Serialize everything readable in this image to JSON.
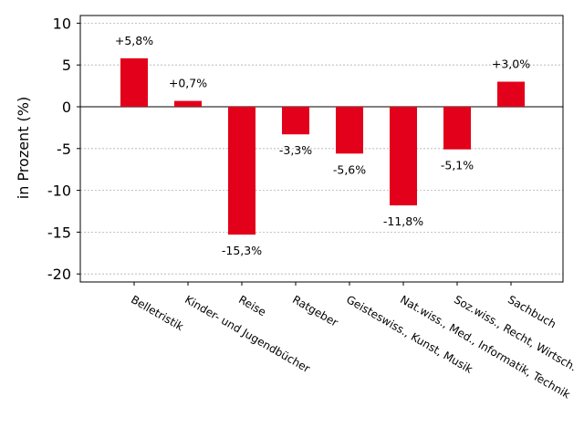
{
  "chart_data": {
    "type": "bar",
    "ylabel": "in Prozent (%)",
    "ylim": [
      -21,
      11
    ],
    "yticks": [
      10,
      5,
      0,
      -5,
      -10,
      -15,
      -20
    ],
    "ytick_labels": [
      "10",
      "5",
      "0",
      "-5",
      "-10",
      "-15",
      "-20"
    ],
    "grid": true,
    "bar_color": "#e2001a",
    "categories": [
      "Belletristik",
      "Kinder- und Jugendbücher",
      "Reise",
      "Ratgeber",
      "Geisteswiss., Kunst, Musik",
      "Nat.wiss., Med., Informatik, Technik",
      "Soz.wiss., Recht, Wirtsch.",
      "Sachbuch"
    ],
    "values": [
      5.8,
      0.7,
      -15.3,
      -3.3,
      -5.6,
      -11.8,
      -5.1,
      3.0
    ],
    "data_labels": [
      "+5,8%",
      "+0,7%",
      "-15,3%",
      "-3,3%",
      "-5,6%",
      "-11,8%",
      "-5,1%",
      "+3,0%"
    ]
  }
}
